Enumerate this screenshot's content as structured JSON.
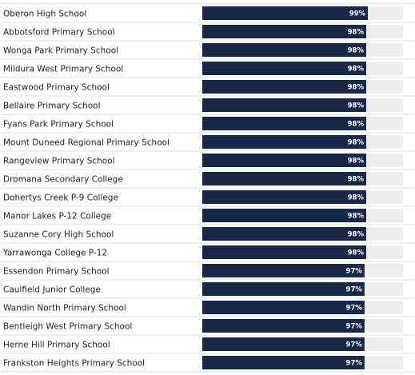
{
  "colors": {
    "bar": "#182848",
    "track": "#eeeeee",
    "divider": "#e2e2e2",
    "text": "#222222",
    "bar_label": "#ffffff"
  },
  "chart_data": {
    "type": "bar",
    "orientation": "horizontal",
    "xlim": [
      0,
      120
    ],
    "categories": [
      "Oberon High School",
      "Abbotsford Primary School",
      "Wonga Park Primary School",
      "Mildura West Primary School",
      "Eastwood Primary School",
      "Bellaire Primary School",
      "Fyans Park Primary School",
      "Mount Duneed Regional Primary School",
      "Rangeview Primary School",
      "Dromana Secondary College",
      "Dohertys Creek P-9 College",
      "Manor Lakes P-12 College",
      "Suzanne Cory High School",
      "Yarrawonga College P-12",
      "Essendon Primary School",
      "Caulfield Junior College",
      "Wandin North Primary School",
      "Bentleigh West Primary School",
      "Herne Hill Primary School",
      "Frankston Heights Primary School"
    ],
    "values": [
      99,
      98,
      98,
      98,
      98,
      98,
      98,
      98,
      98,
      98,
      98,
      98,
      98,
      98,
      97,
      97,
      97,
      97,
      97,
      97
    ],
    "value_labels": [
      "99%",
      "98%",
      "98%",
      "98%",
      "98%",
      "98%",
      "98%",
      "98%",
      "98%",
      "98%",
      "98%",
      "98%",
      "98%",
      "98%",
      "97%",
      "97%",
      "97%",
      "97%",
      "97%",
      "97%"
    ]
  }
}
